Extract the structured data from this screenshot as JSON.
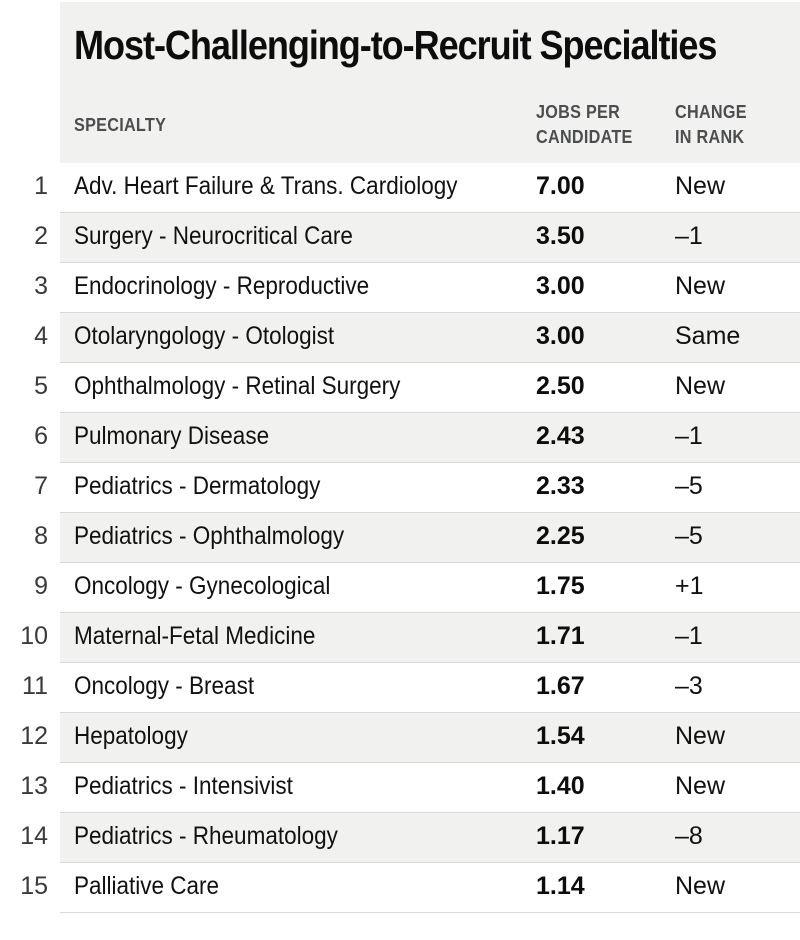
{
  "chart_data": {
    "type": "table",
    "title": "Most-Challenging-to-Recruit Specialties",
    "columns": {
      "specialty": "SPECIALTY",
      "jobs_per_candidate": [
        "JOBS PER",
        "CANDIDATE"
      ],
      "change_in_rank": [
        "CHANGE",
        "IN RANK"
      ]
    },
    "rows": [
      {
        "rank": "1",
        "specialty": "Adv. Heart Failure & Trans. Cardiology",
        "jobs_per_candidate": "7.00",
        "change_in_rank": "New"
      },
      {
        "rank": "2",
        "specialty": "Surgery - Neurocritical Care",
        "jobs_per_candidate": "3.50",
        "change_in_rank": "–1"
      },
      {
        "rank": "3",
        "specialty": "Endocrinology - Reproductive",
        "jobs_per_candidate": "3.00",
        "change_in_rank": "New"
      },
      {
        "rank": "4",
        "specialty": "Otolaryngology - Otologist",
        "jobs_per_candidate": "3.00",
        "change_in_rank": "Same"
      },
      {
        "rank": "5",
        "specialty": "Ophthalmology - Retinal Surgery",
        "jobs_per_candidate": "2.50",
        "change_in_rank": "New"
      },
      {
        "rank": "6",
        "specialty": "Pulmonary Disease",
        "jobs_per_candidate": "2.43",
        "change_in_rank": "–1"
      },
      {
        "rank": "7",
        "specialty": "Pediatrics - Dermatology",
        "jobs_per_candidate": "2.33",
        "change_in_rank": "–5"
      },
      {
        "rank": "8",
        "specialty": "Pediatrics - Ophthalmology",
        "jobs_per_candidate": "2.25",
        "change_in_rank": "–5"
      },
      {
        "rank": "9",
        "specialty": "Oncology - Gynecological",
        "jobs_per_candidate": "1.75",
        "change_in_rank": "+1"
      },
      {
        "rank": "10",
        "specialty": "Maternal-Fetal Medicine",
        "jobs_per_candidate": "1.71",
        "change_in_rank": "–1"
      },
      {
        "rank": "11",
        "specialty": "Oncology - Breast",
        "jobs_per_candidate": "1.67",
        "change_in_rank": "–3"
      },
      {
        "rank": "12",
        "specialty": "Hepatology",
        "jobs_per_candidate": "1.54",
        "change_in_rank": "New"
      },
      {
        "rank": "13",
        "specialty": "Pediatrics - Intensivist",
        "jobs_per_candidate": "1.40",
        "change_in_rank": "New"
      },
      {
        "rank": "14",
        "specialty": "Pediatrics - Rheumatology",
        "jobs_per_candidate": "1.17",
        "change_in_rank": "–8"
      },
      {
        "rank": "15",
        "specialty": "Palliative Care",
        "jobs_per_candidate": "1.14",
        "change_in_rank": "New"
      }
    ]
  },
  "colors": {
    "header_background": "#f1f2ef",
    "alternate_row": "#f1f2ef",
    "column_header_text": "#4b4d4e",
    "row_rule": "#d9dad6"
  }
}
